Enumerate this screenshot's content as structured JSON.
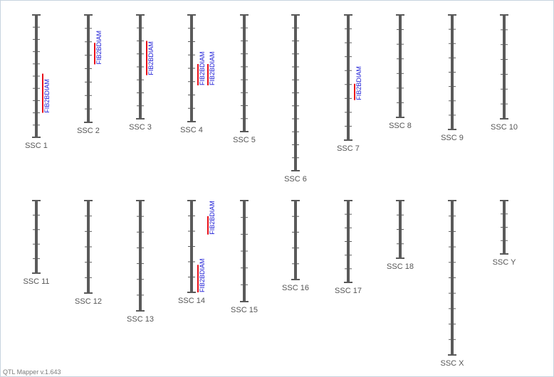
{
  "app": {
    "version_text": "QTL Mapper v.1.643"
  },
  "colors": {
    "chromosome": "#5a5a5a",
    "tick": "#5a5a5a",
    "qtl_bar": "#e8101a",
    "qtl_label": "#1a1ad6",
    "chromosome_label": "#555555"
  },
  "chromosomes": [
    {
      "label": "SSC 1",
      "ticks": 9,
      "qtls": [
        {
          "label": "FIB2BDIAM",
          "start": 0.48,
          "end": 0.8
        }
      ]
    },
    {
      "label": "SSC 2",
      "ticks": 7,
      "qtls": [
        {
          "label": "FIB2BDIAM",
          "start": 0.26,
          "end": 0.46
        }
      ]
    },
    {
      "label": "SSC 3",
      "ticks": 7,
      "qtls": [
        {
          "label": "FIB2BDIAM",
          "start": 0.25,
          "end": 0.58
        }
      ]
    },
    {
      "label": "SSC 4",
      "ticks": 7,
      "qtls": [
        {
          "label": "FIB2BDIAM",
          "start": 0.46,
          "end": 0.66
        },
        {
          "label": "FIB2BDIAM",
          "start": 0.46,
          "end": 0.66
        }
      ]
    },
    {
      "label": "SSC 5",
      "ticks": 8,
      "qtls": []
    },
    {
      "label": "SSC 6",
      "ticks": 11,
      "qtls": []
    },
    {
      "label": "SSC 7",
      "ticks": 8,
      "qtls": [
        {
          "label": "FIB2BDIAM",
          "start": 0.55,
          "end": 0.68
        }
      ]
    },
    {
      "label": "SSC 8",
      "ticks": 6,
      "qtls": []
    },
    {
      "label": "SSC 9",
      "ticks": 7,
      "qtls": []
    },
    {
      "label": "SSC 10",
      "ticks": 6,
      "qtls": []
    },
    {
      "label": "SSC 11",
      "ticks": 4,
      "qtls": []
    },
    {
      "label": "SSC 12",
      "ticks": 5,
      "qtls": []
    },
    {
      "label": "SSC 13",
      "ticks": 6,
      "qtls": []
    },
    {
      "label": "SSC 14",
      "ticks": 5,
      "qtls": [
        {
          "label": "FIB2BDIAM",
          "start": 0.17,
          "end": 0.37
        },
        {
          "label": "FIB2BDIAM",
          "start": 0.7,
          "end": 1.0
        }
      ]
    },
    {
      "label": "SSC 15",
      "ticks": 5,
      "qtls": []
    },
    {
      "label": "SSC 16",
      "ticks": 4,
      "qtls": []
    },
    {
      "label": "SSC 17",
      "ticks": 5,
      "qtls": []
    },
    {
      "label": "SSC 18",
      "ticks": 3,
      "qtls": []
    },
    {
      "label": "SSC X",
      "ticks": 9,
      "qtls": []
    },
    {
      "label": "SSC Y",
      "ticks": 3,
      "qtls": []
    }
  ]
}
